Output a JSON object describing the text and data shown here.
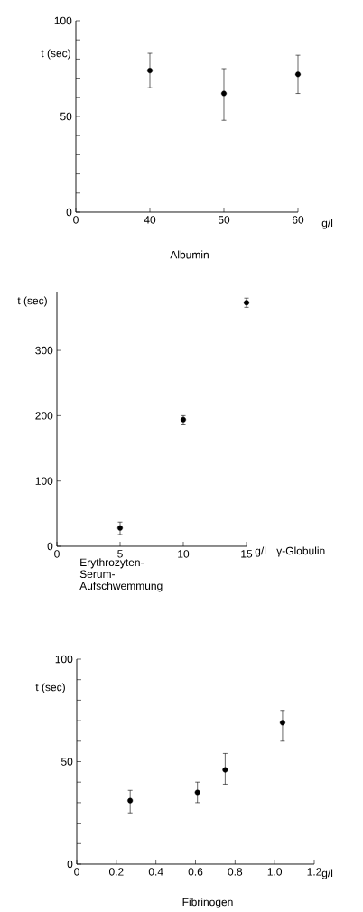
{
  "chart_data": [
    {
      "type": "scatter",
      "xlabel": "Albumin",
      "ylabel": "t (sec)",
      "annotations": [
        "g/l"
      ],
      "categories": [
        "0",
        "40",
        "50",
        "60"
      ],
      "values": [
        null,
        74,
        62,
        72
      ],
      "errors": [
        null,
        [
          65,
          83
        ],
        [
          48,
          75
        ],
        [
          62,
          82
        ]
      ],
      "color": "#000000",
      "marker": "circle",
      "ylim": [
        0,
        100
      ],
      "yticks": [
        0,
        {
          "value": 10,
          "label": null
        },
        {
          "value": 20,
          "label": null
        },
        {
          "value": 30,
          "label": null
        },
        {
          "value": 40,
          "label": null
        },
        50,
        {
          "value": 60,
          "label": null
        },
        {
          "value": 70,
          "label": null
        },
        {
          "value": 80,
          "label": null
        },
        {
          "value": 90,
          "label": null
        },
        100
      ]
    },
    {
      "type": "scatter",
      "xlabel": "γ-Globulin",
      "ylabel": "t (sec)",
      "annotations": [
        "g/l",
        "Erythrozyten-Serum-Aufschwemmung"
      ],
      "x": [
        5,
        10,
        15
      ],
      "values": [
        28,
        194,
        373
      ],
      "errors": [
        [
          18,
          37
        ],
        [
          186,
          200
        ],
        [
          366,
          380
        ]
      ],
      "color": "#000000",
      "marker": "circle",
      "xlim": [
        0,
        15
      ],
      "xticks": [
        0,
        5,
        10,
        15
      ],
      "ylim": [
        0,
        390
      ],
      "yticks": [
        0,
        100,
        200,
        300
      ]
    },
    {
      "type": "scatter",
      "xlabel": "Fibrinogen",
      "ylabel": "t (sec)",
      "annotations": [
        "g/l"
      ],
      "x": [
        0.27,
        0.61,
        0.75,
        1.04
      ],
      "values": [
        31,
        35,
        46,
        69
      ],
      "errors": [
        [
          25,
          36
        ],
        [
          30,
          40
        ],
        [
          39,
          54
        ],
        [
          60,
          75
        ]
      ],
      "color": "#000000",
      "marker": "circle",
      "xlim": [
        0,
        1.2
      ],
      "xticks": [
        0,
        0.2,
        0.4,
        0.6,
        0.8,
        {
          "value": 1.0,
          "label": "1.0"
        },
        1.2
      ],
      "ylim": [
        0,
        100
      ],
      "yticks": [
        0,
        {
          "value": 10,
          "label": null
        },
        {
          "value": 20,
          "label": null
        },
        {
          "value": 30,
          "label": null
        },
        {
          "value": 40,
          "label": null
        },
        50,
        {
          "value": 60,
          "label": null
        },
        {
          "value": 70,
          "label": null
        },
        {
          "value": 80,
          "label": null
        },
        {
          "value": 90,
          "label": null
        },
        100
      ]
    }
  ]
}
